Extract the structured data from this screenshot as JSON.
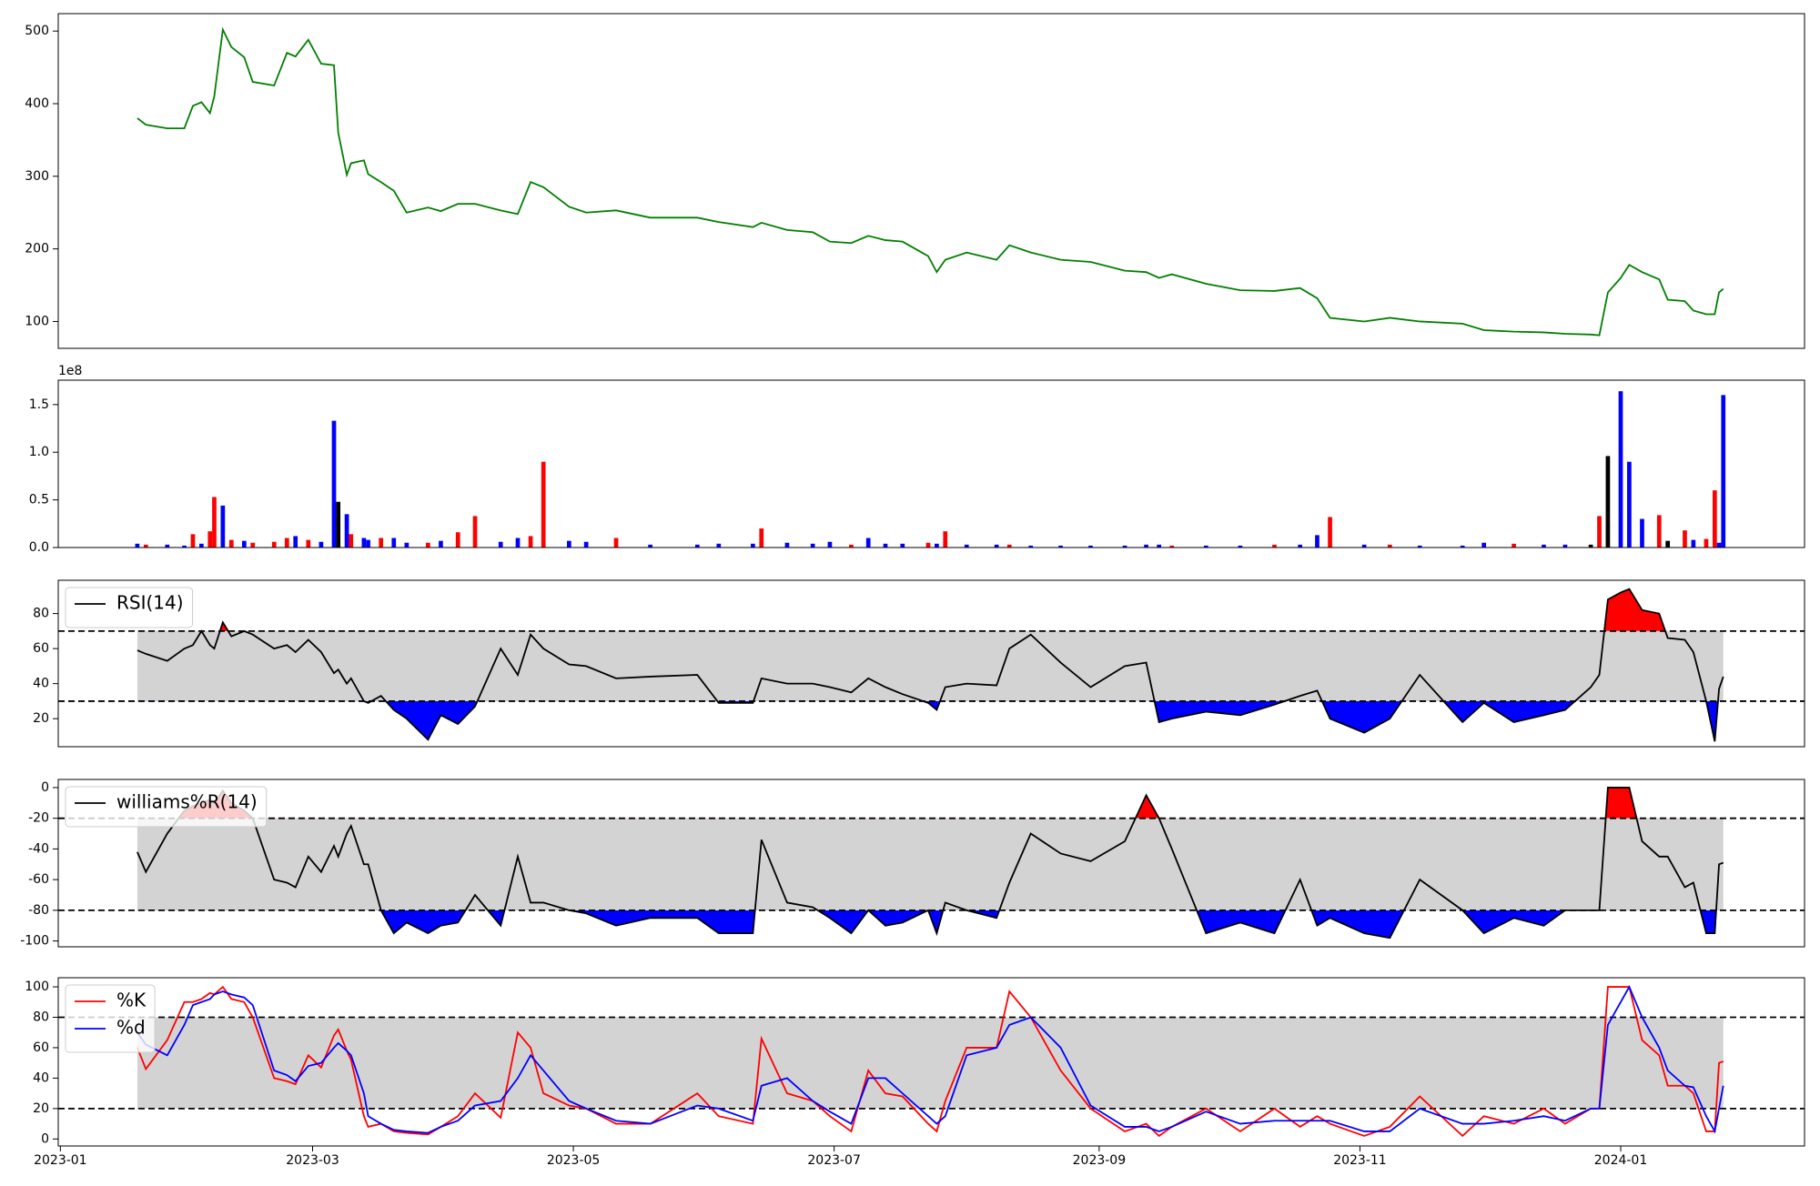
{
  "shared_x_axis": {
    "x": [
      18,
      20,
      25,
      29,
      31,
      33,
      35,
      36,
      38,
      40,
      43,
      45,
      50,
      53,
      55,
      58,
      61,
      64,
      65,
      67,
      68,
      71,
      72,
      75,
      78,
      81,
      86,
      89,
      93,
      97,
      103,
      107,
      110,
      113,
      119,
      123,
      130,
      138,
      149,
      154,
      162,
      164,
      170,
      176,
      180,
      185,
      189,
      193,
      197,
      203,
      205,
      207,
      212,
      219,
      222,
      227,
      234,
      241,
      249,
      254,
      257,
      260,
      268,
      276,
      284,
      290,
      294,
      297,
      305,
      311,
      318,
      328,
      333,
      340,
      347,
      352,
      358,
      360,
      362,
      365,
      367,
      370,
      374,
      376,
      380,
      382,
      385,
      387,
      388,
      389
    ],
    "xlim": [
      -0.5,
      408
    ],
    "xticks": [
      {
        "value": 0,
        "label": "2023-01"
      },
      {
        "value": 59,
        "label": "2023-03"
      },
      {
        "value": 120,
        "label": "2023-05"
      },
      {
        "value": 181,
        "label": "2023-07"
      },
      {
        "value": 243,
        "label": "2023-09"
      },
      {
        "value": 304,
        "label": "2023-11"
      },
      {
        "value": 365,
        "label": "2024-01"
      }
    ]
  },
  "chart_data": [
    {
      "type": "line",
      "ylim": [
        63,
        524
      ],
      "yticks": [
        100,
        200,
        300,
        400,
        500
      ],
      "series": [
        {
          "color": "#008000",
          "values": [
            380,
            371,
            366,
            366,
            397,
            402,
            387,
            410,
            502,
            478,
            464,
            430,
            425,
            470,
            465,
            488,
            455,
            453,
            360,
            302,
            318,
            322,
            303,
            292,
            280,
            250,
            257,
            252,
            262,
            262,
            253,
            248,
            292,
            285,
            258,
            250,
            253,
            243,
            243,
            237,
            230,
            236,
            226,
            223,
            210,
            208,
            218,
            212,
            210,
            190,
            168,
            185,
            195,
            185,
            205,
            195,
            185,
            182,
            170,
            168,
            160,
            165,
            152,
            143,
            142,
            146,
            132,
            105,
            100,
            105,
            100,
            97,
            88,
            86,
            85,
            83,
            82,
            81,
            140,
            160,
            178,
            168,
            158,
            130,
            128,
            115,
            110,
            110,
            140,
            145
          ]
        }
      ]
    },
    {
      "type": "bar",
      "ylim": [
        0,
        175600000
      ],
      "offset_text": "1e8",
      "yticks": [
        {
          "value": 0,
          "label": "0.0"
        },
        {
          "value": 50000000,
          "label": "0.5"
        },
        {
          "value": 100000000,
          "label": "1.0"
        },
        {
          "value": 150000000,
          "label": "1.5"
        }
      ],
      "series": [
        {
          "values": [
            4000000,
            3000000,
            3000000,
            2000000,
            14000000,
            4000000,
            17000000,
            53000000,
            44000000,
            8000000,
            7000000,
            5000000,
            6000000,
            10000000,
            12000000,
            8000000,
            6000000,
            133000000,
            48000000,
            35000000,
            14000000,
            10000000,
            8000000,
            10000000,
            10000000,
            5000000,
            5000000,
            7000000,
            16000000,
            33000000,
            6000000,
            10000000,
            12000000,
            90000000,
            7000000,
            6000000,
            10000000,
            3000000,
            3000000,
            4000000,
            4000000,
            20000000,
            5000000,
            4000000,
            6000000,
            3000000,
            10000000,
            4000000,
            4000000,
            5000000,
            4000000,
            17000000,
            3000000,
            3000000,
            3000000,
            2000000,
            2000000,
            2000000,
            2000000,
            3000000,
            3000000,
            2000000,
            2000000,
            2000000,
            3000000,
            3000000,
            13000000,
            32000000,
            3000000,
            3000000,
            2000000,
            2000000,
            5000000,
            4000000,
            3000000,
            3000000,
            3000000,
            33000000,
            96000000,
            164000000,
            90000000,
            30000000,
            34000000,
            7000000,
            18000000,
            8000000,
            9000000,
            60000000,
            5000000,
            160000000
          ],
          "colors": [
            "blue",
            "red",
            "blue",
            "blue",
            "red",
            "blue",
            "red",
            "red",
            "blue",
            "red",
            "blue",
            "red",
            "red",
            "red",
            "blue",
            "red",
            "blue",
            "blue",
            "black",
            "blue",
            "red",
            "blue",
            "blue",
            "red",
            "blue",
            "blue",
            "red",
            "blue",
            "red",
            "red",
            "blue",
            "blue",
            "red",
            "red",
            "blue",
            "blue",
            "red",
            "blue",
            "blue",
            "blue",
            "blue",
            "red",
            "blue",
            "blue",
            "blue",
            "red",
            "blue",
            "blue",
            "blue",
            "red",
            "blue",
            "red",
            "blue",
            "blue",
            "red",
            "blue",
            "blue",
            "blue",
            "blue",
            "blue",
            "blue",
            "red",
            "blue",
            "blue",
            "red",
            "blue",
            "blue",
            "red",
            "blue",
            "red",
            "blue",
            "blue",
            "blue",
            "red",
            "blue",
            "blue",
            "black",
            "red",
            "black",
            "blue",
            "blue",
            "blue",
            "red",
            "black",
            "red",
            "blue",
            "red",
            "red",
            "blue",
            "blue"
          ]
        }
      ]
    },
    {
      "type": "oscillator",
      "ylim": [
        4,
        99
      ],
      "yticks": [
        20,
        40,
        60,
        80
      ],
      "levels": [
        30,
        70
      ],
      "band_color": "#d3d3d3",
      "fill_above": "red",
      "fill_below": "blue",
      "series": [
        {
          "name": "RSI(14)",
          "color": "black",
          "values": [
            59,
            57,
            53,
            60,
            62,
            70,
            62,
            60,
            75,
            67,
            70,
            68,
            60,
            62,
            58,
            65,
            58,
            46,
            48,
            40,
            43,
            30,
            29,
            33,
            25,
            20,
            8,
            22,
            17,
            27,
            60,
            45,
            68,
            60,
            51,
            50,
            43,
            44,
            45,
            29,
            29,
            43,
            40,
            40,
            38,
            35,
            43,
            38,
            34,
            29,
            25,
            38,
            40,
            39,
            60,
            68,
            52,
            38,
            50,
            52,
            18,
            20,
            24,
            22,
            28,
            33,
            36,
            20,
            12,
            20,
            45,
            18,
            29,
            18,
            22,
            25,
            38,
            45,
            88,
            92,
            94,
            82,
            80,
            66,
            65,
            58,
            30,
            7,
            37,
            44
          ]
        }
      ]
    },
    {
      "type": "oscillator",
      "ylim": [
        -103.8,
        5.3
      ],
      "yticks": [
        -100,
        -80,
        -60,
        -40,
        -20,
        0
      ],
      "levels": [
        -80,
        -20
      ],
      "band_color": "#d3d3d3",
      "fill_above": "red",
      "fill_below": "blue",
      "series": [
        {
          "name": "williams%R(14)",
          "color": "black",
          "values": [
            -42,
            -55,
            -30,
            -15,
            -12,
            -10,
            -8,
            -10,
            -2,
            -10,
            -15,
            -20,
            -60,
            -62,
            -65,
            -45,
            -55,
            -38,
            -45,
            -30,
            -25,
            -50,
            -50,
            -80,
            -95,
            -88,
            -95,
            -90,
            -88,
            -70,
            -90,
            -45,
            -75,
            -75,
            -80,
            -82,
            -90,
            -85,
            -85,
            -95,
            -95,
            -34,
            -75,
            -78,
            -85,
            -95,
            -80,
            -90,
            -88,
            -80,
            -95,
            -75,
            -80,
            -85,
            -62,
            -30,
            -43,
            -48,
            -35,
            -5,
            -20,
            -40,
            -95,
            -88,
            -95,
            -60,
            -90,
            -85,
            -95,
            -98,
            -60,
            -80,
            -95,
            -85,
            -90,
            -80,
            -80,
            -80,
            0,
            0,
            0,
            -35,
            -45,
            -45,
            -65,
            -62,
            -95,
            -95,
            -50,
            -49
          ]
        }
      ]
    },
    {
      "type": "oscillator",
      "ylim": [
        -4.6,
        106
      ],
      "yticks": [
        0,
        20,
        40,
        60,
        80,
        100
      ],
      "levels": [
        20,
        80
      ],
      "band_color": "#d3d3d3",
      "series": [
        {
          "name": "%K",
          "color": "red",
          "values": [
            60,
            46,
            65,
            90,
            90,
            92,
            96,
            95,
            100,
            92,
            90,
            80,
            40,
            38,
            36,
            55,
            47,
            68,
            72,
            58,
            52,
            15,
            8,
            10,
            5,
            4,
            3,
            8,
            15,
            30,
            14,
            70,
            60,
            30,
            22,
            20,
            10,
            10,
            30,
            15,
            10,
            66,
            30,
            25,
            15,
            5,
            45,
            30,
            28,
            10,
            5,
            25,
            60,
            60,
            97,
            80,
            45,
            20,
            5,
            10,
            2,
            8,
            20,
            5,
            20,
            8,
            15,
            10,
            2,
            8,
            28,
            2,
            15,
            10,
            20,
            10,
            20,
            20,
            100,
            100,
            100,
            65,
            55,
            35,
            35,
            30,
            5,
            5,
            50,
            51
          ]
        },
        {
          "name": "%d",
          "color": "blue",
          "values": [
            70,
            62,
            55,
            75,
            88,
            90,
            92,
            95,
            97,
            95,
            93,
            88,
            45,
            42,
            38,
            48,
            50,
            60,
            63,
            58,
            55,
            30,
            15,
            10,
            6,
            5,
            4,
            8,
            12,
            22,
            25,
            40,
            55,
            45,
            25,
            20,
            12,
            10,
            22,
            20,
            12,
            35,
            40,
            25,
            18,
            10,
            40,
            40,
            30,
            15,
            10,
            15,
            55,
            60,
            75,
            80,
            60,
            22,
            8,
            8,
            5,
            8,
            18,
            10,
            12,
            12,
            12,
            12,
            5,
            5,
            20,
            10,
            10,
            12,
            15,
            12,
            20,
            20,
            75,
            90,
            100,
            80,
            60,
            45,
            35,
            34,
            15,
            5,
            20,
            35
          ]
        }
      ]
    }
  ]
}
